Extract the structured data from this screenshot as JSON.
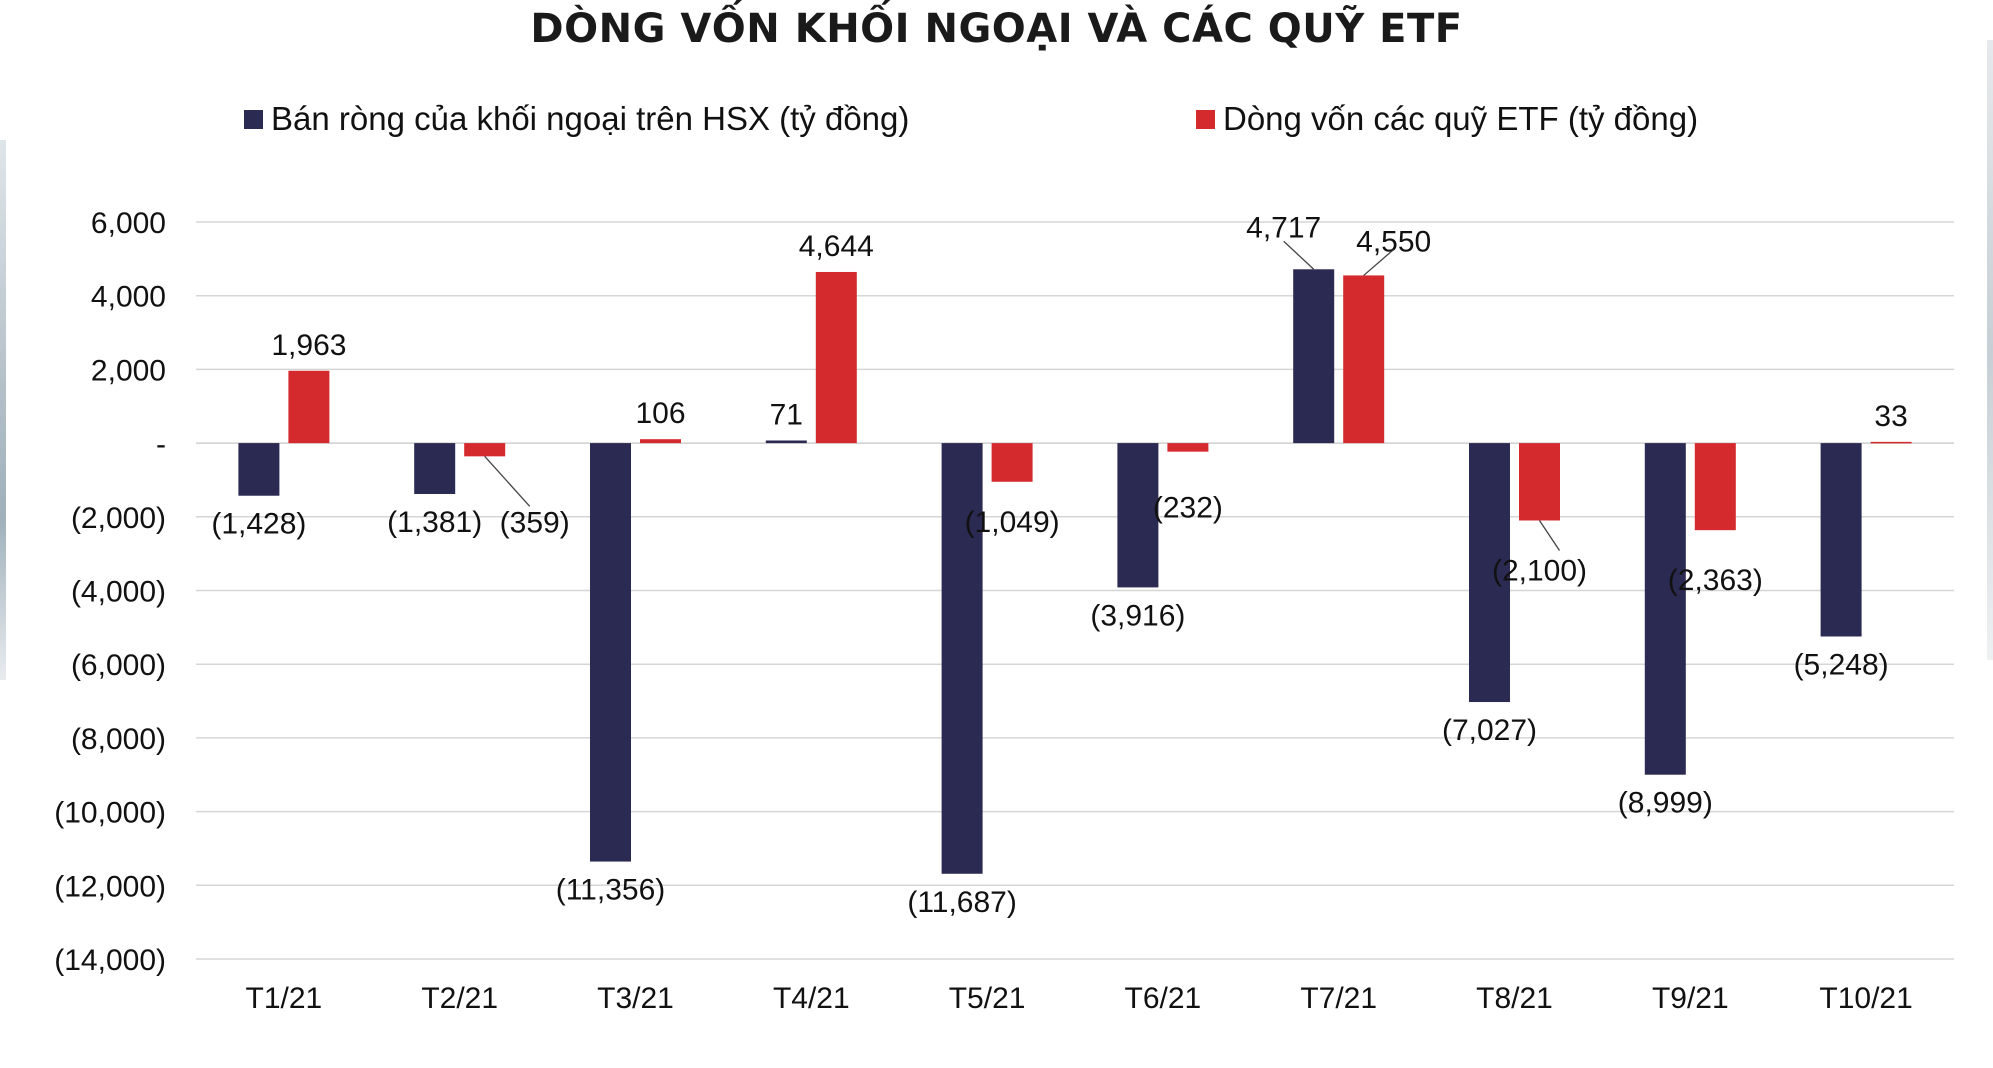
{
  "chart_data": {
    "type": "bar",
    "title": "DÒNG VỐN KHỐI NGOẠI VÀ CÁC QUỸ ETF",
    "categories": [
      "T1/21",
      "T2/21",
      "T3/21",
      "T4/21",
      "T5/21",
      "T6/21",
      "T7/21",
      "T8/21",
      "T9/21",
      "T10/21"
    ],
    "series": [
      {
        "name": "Bán ròng của khối ngoại trên HSX (tỷ đồng)",
        "color": "#2b2a52",
        "values": [
          -1428,
          -1381,
          -11356,
          71,
          -11687,
          -3916,
          4717,
          -7027,
          -8999,
          -5248
        ],
        "labels": [
          "(1,428)",
          "(1,381)",
          "(11,356)",
          "71",
          "(11,687)",
          "(3,916)",
          "4,717",
          "(7,027)",
          "(8,999)",
          "(5,248)"
        ]
      },
      {
        "name": "Dòng vốn các quỹ ETF (tỷ đồng)",
        "color": "#d42a2e",
        "values": [
          1963,
          -359,
          106,
          4644,
          -1049,
          -232,
          4550,
          -2100,
          -2363,
          33
        ],
        "labels": [
          "1,963",
          "(359)",
          "106",
          "4,644",
          "(1,049)",
          "(232)",
          "4,550",
          "(2,100)",
          "(2,363)",
          "33"
        ]
      }
    ],
    "yticks": [
      6000,
      4000,
      2000,
      0,
      -2000,
      -4000,
      -6000,
      -8000,
      -10000,
      -12000,
      -14000
    ],
    "ytick_labels": [
      "6,000",
      "4,000",
      "2,000",
      "-",
      "(2,000)",
      "(4,000)",
      "(6,000)",
      "(8,000)",
      "(10,000)",
      "(12,000)",
      "(14,000)"
    ],
    "ylim": [
      -14000,
      6000
    ],
    "grid": true,
    "legend_position": "top"
  }
}
